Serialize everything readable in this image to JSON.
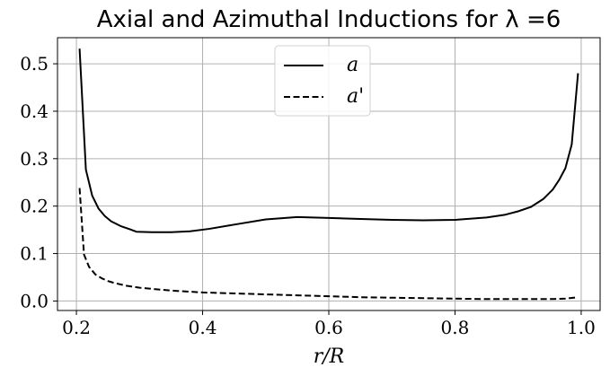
{
  "chart_data": {
    "type": "line",
    "title": "Axial and Azimuthal Inductions for λ =6",
    "xlabel": "r/R",
    "ylabel": "",
    "xlim": [
      0.17,
      1.03
    ],
    "ylim": [
      -0.02,
      0.555
    ],
    "xticks": [
      "0.2",
      "0.4",
      "0.6",
      "0.8",
      "1.0"
    ],
    "yticks": [
      "0.0",
      "0.1",
      "0.2",
      "0.3",
      "0.4",
      "0.5"
    ],
    "grid": true,
    "legend_position": "upper-center",
    "series": [
      {
        "name": "a",
        "style": "solid",
        "color": "#000000",
        "x": [
          0.205,
          0.215,
          0.225,
          0.235,
          0.245,
          0.255,
          0.27,
          0.285,
          0.295,
          0.32,
          0.35,
          0.38,
          0.41,
          0.45,
          0.5,
          0.55,
          0.6,
          0.65,
          0.7,
          0.75,
          0.8,
          0.85,
          0.88,
          0.9,
          0.92,
          0.94,
          0.955,
          0.965,
          0.975,
          0.985,
          0.995
        ],
        "y": [
          0.532,
          0.277,
          0.222,
          0.195,
          0.179,
          0.168,
          0.158,
          0.151,
          0.146,
          0.145,
          0.145,
          0.147,
          0.152,
          0.161,
          0.172,
          0.177,
          0.175,
          0.173,
          0.171,
          0.17,
          0.171,
          0.176,
          0.182,
          0.189,
          0.198,
          0.215,
          0.235,
          0.255,
          0.28,
          0.33,
          0.48
        ]
      },
      {
        "name": "a'",
        "style": "dashed",
        "color": "#000000",
        "x": [
          0.205,
          0.212,
          0.22,
          0.23,
          0.24,
          0.25,
          0.26,
          0.28,
          0.3,
          0.35,
          0.4,
          0.45,
          0.5,
          0.55,
          0.6,
          0.65,
          0.7,
          0.75,
          0.8,
          0.85,
          0.9,
          0.95,
          0.975,
          0.995
        ],
        "y": [
          0.238,
          0.098,
          0.072,
          0.056,
          0.048,
          0.042,
          0.038,
          0.032,
          0.028,
          0.022,
          0.018,
          0.016,
          0.014,
          0.012,
          0.01,
          0.008,
          0.007,
          0.006,
          0.005,
          0.004,
          0.004,
          0.004,
          0.005,
          0.008
        ]
      }
    ]
  }
}
